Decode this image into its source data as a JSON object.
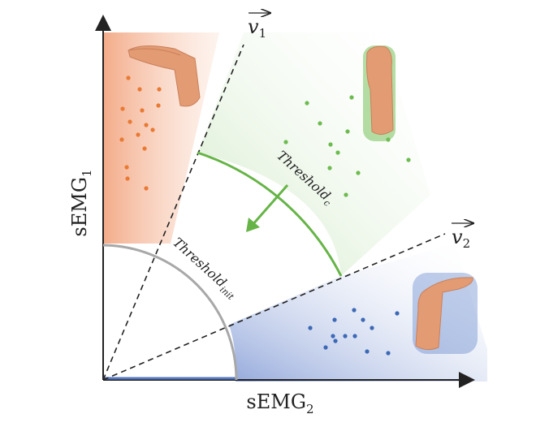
{
  "axes": {
    "y_label": "sEMG",
    "y_sub": "1",
    "x_label": "sEMG",
    "x_sub": "2"
  },
  "vectors": {
    "v1_label": "v",
    "v1_sub": "1",
    "v2_label": "v",
    "v2_sub": "2"
  },
  "thresholds": {
    "c_label": "Threshold",
    "c_sub": "c",
    "init_label": "Threshold",
    "init_sub": "init"
  },
  "colors": {
    "orange_region": "#f4a582",
    "green_region": "#b9dfa9",
    "blue_region": "#8fa5d8",
    "orange_point": "#e87a35",
    "green_point": "#6dbb4f",
    "blue_point": "#3c68b5",
    "threshold_c": "#66b447",
    "threshold_init": "#a8a8a8",
    "axis": "#222222"
  },
  "icons": {
    "top_left": "hand-flexion-icon",
    "top_right": "fist-icon",
    "bottom_right": "hand-extension-icon"
  }
}
